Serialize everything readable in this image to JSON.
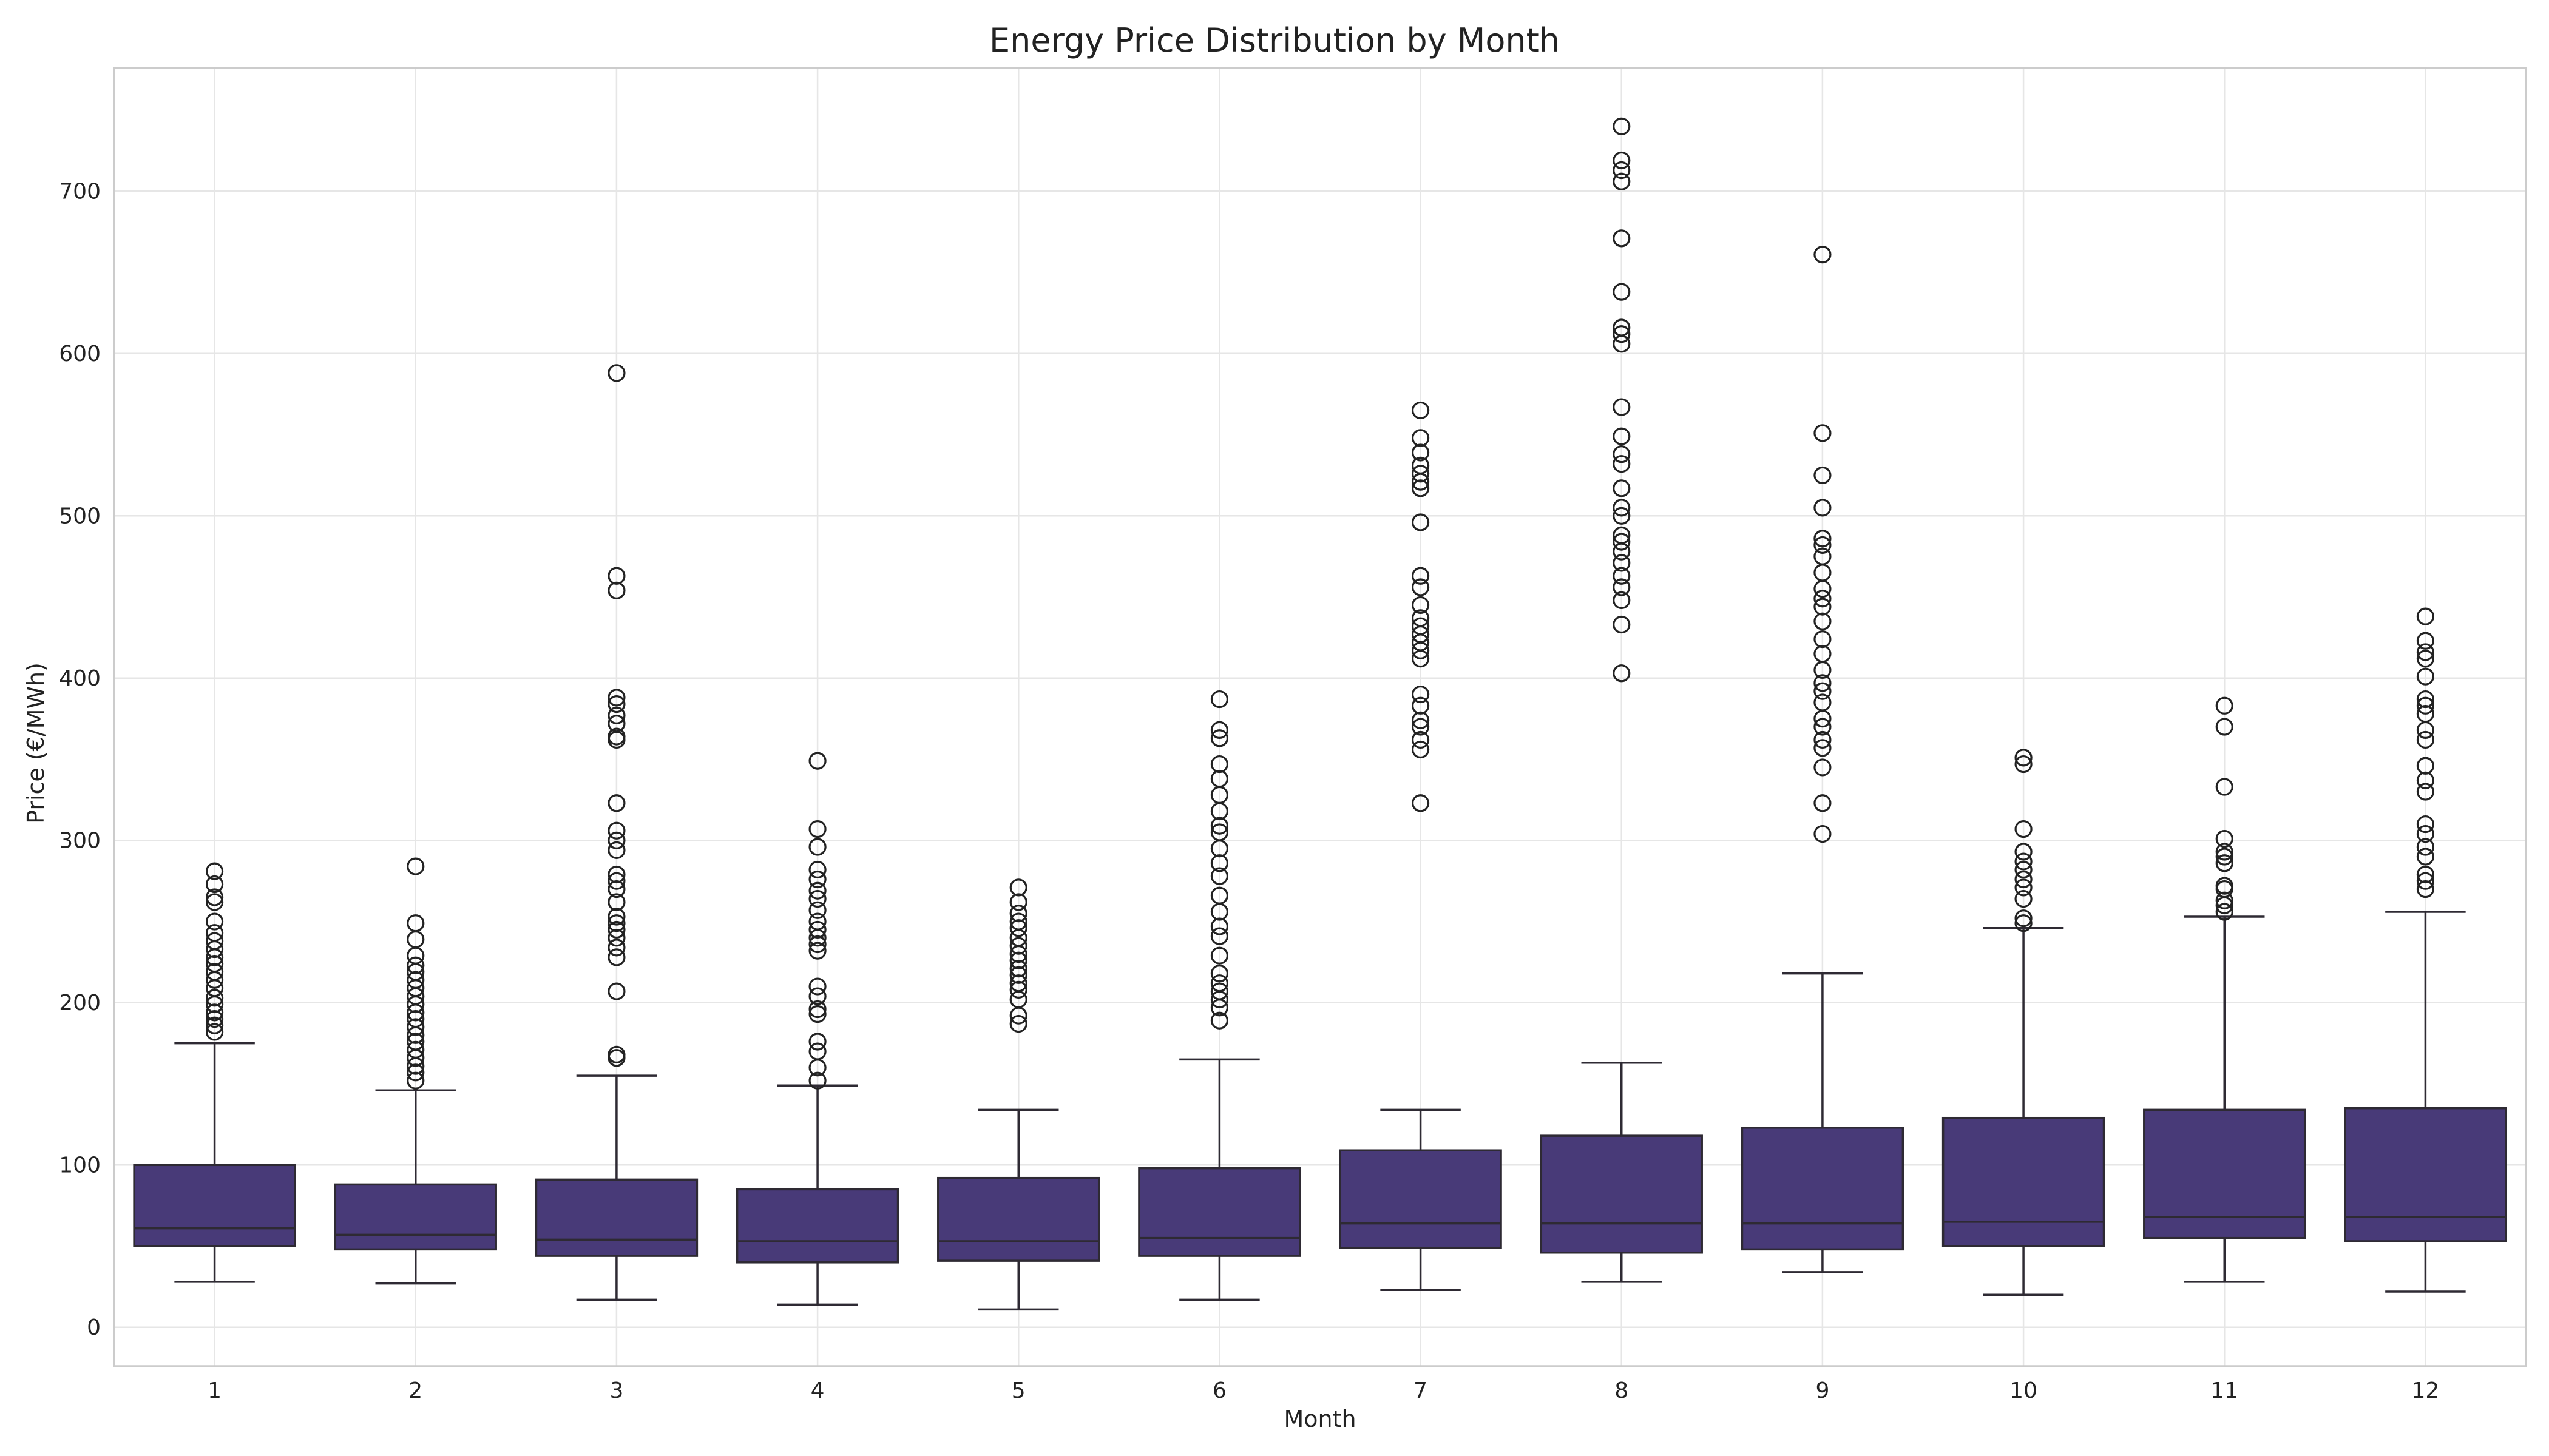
{
  "chart_data": {
    "type": "boxplot",
    "title": "Energy Price Distribution by Month",
    "xlabel": "Month",
    "ylabel": "Price (€/MWh)",
    "ylim": [
      -24,
      776
    ],
    "yticks": [
      0,
      100,
      200,
      300,
      400,
      500,
      600,
      700
    ],
    "grid": true,
    "box_color": "#483a78",
    "edge_color": "#2e2a33",
    "categories": [
      "1",
      "2",
      "3",
      "4",
      "5",
      "6",
      "7",
      "8",
      "9",
      "10",
      "11",
      "12"
    ],
    "boxes": [
      {
        "month": "1",
        "whisker_low": 28,
        "q1": 50,
        "median": 61,
        "q3": 100,
        "whisker_high": 175,
        "outliers": [
          182,
          186,
          190,
          194,
          199,
          203,
          209,
          214,
          219,
          224,
          228,
          233,
          238,
          243,
          250,
          262,
          265,
          273,
          281
        ]
      },
      {
        "month": "2",
        "whisker_low": 27,
        "q1": 48,
        "median": 57,
        "q3": 88,
        "whisker_high": 146,
        "outliers": [
          152,
          157,
          161,
          166,
          171,
          176,
          180,
          185,
          190,
          194,
          199,
          204,
          209,
          214,
          219,
          223,
          229,
          239,
          249,
          284
        ]
      },
      {
        "month": "3",
        "whisker_low": 17,
        "q1": 44,
        "median": 54,
        "q3": 91,
        "whisker_high": 155,
        "outliers": [
          166,
          168,
          207,
          228,
          234,
          240,
          245,
          249,
          253,
          262,
          270,
          275,
          279,
          294,
          300,
          306,
          323,
          362,
          364,
          372,
          377,
          384,
          388,
          454,
          463,
          588
        ]
      },
      {
        "month": "4",
        "whisker_low": 14,
        "q1": 40,
        "median": 53,
        "q3": 85,
        "whisker_high": 149,
        "outliers": [
          152,
          160,
          170,
          176,
          193,
          196,
          204,
          210,
          232,
          236,
          240,
          245,
          250,
          257,
          264,
          269,
          276,
          282,
          296,
          307,
          349
        ]
      },
      {
        "month": "5",
        "whisker_low": 11,
        "q1": 41,
        "median": 53,
        "q3": 92,
        "whisker_high": 134,
        "outliers": [
          187,
          192,
          202,
          208,
          212,
          217,
          221,
          226,
          230,
          235,
          240,
          246,
          250,
          255,
          262,
          271
        ]
      },
      {
        "month": "6",
        "whisker_low": 17,
        "q1": 44,
        "median": 55,
        "q3": 98,
        "whisker_high": 165,
        "outliers": [
          189,
          197,
          202,
          207,
          212,
          218,
          229,
          241,
          247,
          256,
          266,
          278,
          286,
          295,
          305,
          309,
          318,
          328,
          338,
          347,
          363,
          368,
          387
        ]
      },
      {
        "month": "7",
        "whisker_low": 23,
        "q1": 49,
        "median": 64,
        "q3": 109,
        "whisker_high": 134,
        "outliers": [
          323,
          356,
          362,
          370,
          374,
          383,
          390,
          412,
          417,
          422,
          427,
          432,
          437,
          445,
          456,
          463,
          496,
          517,
          521,
          526,
          531,
          539,
          548,
          565
        ]
      },
      {
        "month": "8",
        "whisker_low": 28,
        "q1": 46,
        "median": 64,
        "q3": 118,
        "whisker_high": 163,
        "outliers": [
          403,
          433,
          448,
          456,
          463,
          471,
          478,
          484,
          488,
          500,
          505,
          517,
          532,
          538,
          549,
          567,
          606,
          612,
          616,
          638,
          671,
          706,
          713,
          719,
          740
        ]
      },
      {
        "month": "9",
        "whisker_low": 34,
        "q1": 48,
        "median": 64,
        "q3": 123,
        "whisker_high": 218,
        "outliers": [
          304,
          323,
          345,
          357,
          362,
          370,
          375,
          385,
          392,
          397,
          405,
          415,
          424,
          435,
          444,
          449,
          455,
          465,
          475,
          482,
          486,
          505,
          525,
          551,
          661
        ]
      },
      {
        "month": "10",
        "whisker_low": 20,
        "q1": 50,
        "median": 65,
        "q3": 129,
        "whisker_high": 246,
        "outliers": [
          249,
          252,
          264,
          271,
          276,
          282,
          287,
          293,
          307,
          347,
          351
        ]
      },
      {
        "month": "11",
        "whisker_low": 28,
        "q1": 55,
        "median": 68,
        "q3": 134,
        "whisker_high": 253,
        "outliers": [
          256,
          260,
          263,
          270,
          272,
          286,
          290,
          293,
          301,
          333,
          370,
          383
        ]
      },
      {
        "month": "12",
        "whisker_low": 22,
        "q1": 53,
        "median": 68,
        "q3": 135,
        "whisker_high": 256,
        "outliers": [
          270,
          275,
          279,
          290,
          296,
          304,
          310,
          330,
          337,
          346,
          362,
          368,
          378,
          383,
          387,
          401,
          412,
          416,
          423,
          438
        ]
      }
    ]
  }
}
